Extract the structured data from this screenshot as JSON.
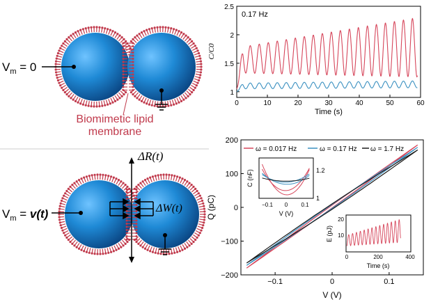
{
  "top_left": {
    "vm_label": "V",
    "vm_sub": "m",
    "vm_rest": " = 0",
    "membrane_label_line1": "Biomimetic lipid",
    "membrane_label_line2": "membrane"
  },
  "bottom_left": {
    "vm_label": "V",
    "vm_sub": "m",
    "vm_rest": " = ",
    "vm_func": "v(t)",
    "delta_r": "ΔR(t)",
    "delta_w": "ΔW(t)"
  },
  "colors": {
    "droplet": "#1f8ad6",
    "droplet_dark": "#0b4f96",
    "membrane": "#c0394b",
    "trace_low": "#d6455a",
    "trace_mid": "#3a90c0",
    "trace_high": "#1a1a1a"
  },
  "chart_data": [
    {
      "id": "capacitance-time",
      "type": "line",
      "annotation": "0.17 Hz",
      "xlabel": "Time (s)",
      "ylabel": "C/C0",
      "xlim": [
        0,
        60
      ],
      "ylim": [
        0.9,
        2.5
      ],
      "xticks": [
        "0",
        "10",
        "20",
        "30",
        "40",
        "50",
        "60"
      ],
      "yticks": [
        "1",
        "1.5",
        "2",
        "2.5"
      ],
      "series": [
        {
          "color": "#d6455a",
          "baseline": 1.05,
          "mean_start": 1.55,
          "amp_start": 0.22,
          "amp_end": 0.52,
          "mean_end": 1.78,
          "freq_hz": 0.34
        },
        {
          "color": "#3a90c0",
          "baseline": 1.0,
          "mean_start": 1.1,
          "amp_start": 0.05,
          "amp_end": 0.06,
          "mean_end": 1.13,
          "freq_hz": 0.34
        }
      ]
    },
    {
      "id": "charge-voltage",
      "type": "line",
      "xlabel": "V (V)",
      "ylabel": "Q (pC)",
      "xlim": [
        -0.16,
        0.16
      ],
      "ylim": [
        -200,
        200
      ],
      "xticks": [
        "−0.1",
        "0",
        "0.1"
      ],
      "yticks": [
        "−200",
        "−100",
        "0",
        "100",
        "200"
      ],
      "legend": [
        "ω = 0.017 Hz",
        "ω = 0.17 Hz",
        "ω = 1.7 Hz"
      ],
      "legend_position": "top",
      "series": [
        {
          "name": "ω = 0.017 Hz",
          "color": "#d6455a",
          "x": [
            -0.15,
            0.15
          ],
          "y": [
            -180,
            185
          ]
        },
        {
          "name": "ω = 0.17 Hz",
          "color": "#3a90c0",
          "x": [
            -0.15,
            0.15
          ],
          "y": [
            -172,
            178
          ]
        },
        {
          "name": "ω = 1.7 Hz",
          "color": "#1a1a1a",
          "x": [
            -0.15,
            0.15
          ],
          "y": [
            -165,
            170
          ]
        }
      ]
    },
    {
      "id": "inset-capacitance-voltage",
      "type": "line",
      "xlabel": "V (V)",
      "ylabel": "C (nF)",
      "xticks": [
        "−0.1",
        "0",
        "0.1"
      ],
      "yticks_right": [
        "1.2",
        "1"
      ]
    },
    {
      "id": "inset-energy-time",
      "type": "line",
      "xlabel": "Time (s)",
      "ylabel": "E (pJ)",
      "xlim": [
        0,
        400
      ],
      "ylim": [
        5,
        25
      ],
      "xticks": [
        "0",
        "200",
        "400"
      ],
      "yticks": [
        "10",
        "20"
      ]
    }
  ]
}
